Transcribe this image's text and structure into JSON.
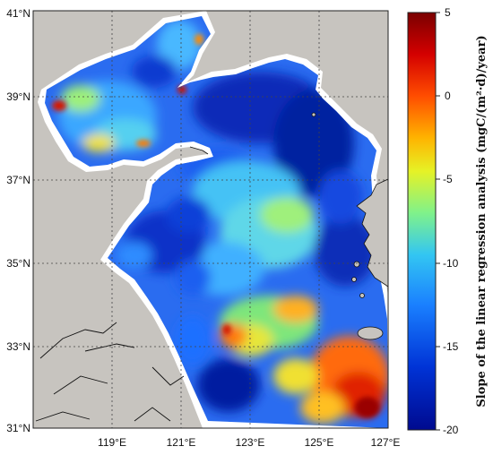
{
  "map": {
    "lat_labels": [
      "41°N",
      "39°N",
      "37°N",
      "35°N",
      "33°N",
      "31°N"
    ],
    "lon_labels": [
      "119°E",
      "121°E",
      "123°E",
      "125°E",
      "127°E"
    ],
    "colors": {
      "land": "#c7c4bf",
      "coastal_white": "#ffffff",
      "grid": "#444444"
    }
  },
  "colorbar": {
    "title": "Slope of the linear regression analysis (mgC/(m²·d)/year)",
    "ticks": [
      "5",
      "0",
      "-5",
      "-10",
      "-15",
      "-20"
    ],
    "range": [
      -20,
      5
    ],
    "colormap": [
      "#000a8f",
      "#0033d6",
      "#1a80ff",
      "#33c6f2",
      "#80f28a",
      "#e6f226",
      "#ffb300",
      "#ff4d00",
      "#d40000",
      "#7a0000"
    ]
  }
}
